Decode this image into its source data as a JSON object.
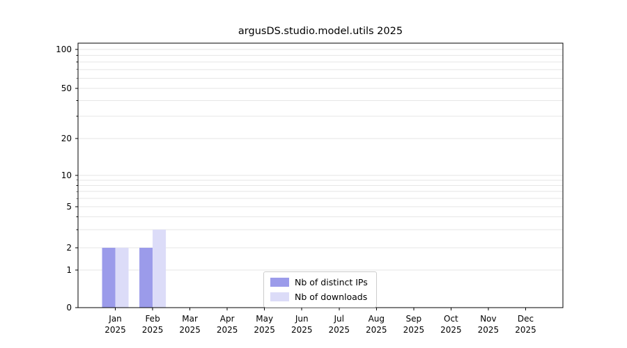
{
  "chart_data": {
    "type": "bar",
    "title": "argusDS.studio.model.utils 2025",
    "categories": [
      "Jan 2025",
      "Feb 2025",
      "Mar 2025",
      "Apr 2025",
      "May 2025",
      "Jun 2025",
      "Jul 2025",
      "Aug 2025",
      "Sep 2025",
      "Oct 2025",
      "Nov 2025",
      "Dec 2025"
    ],
    "series": [
      {
        "name": "Nb of distinct IPs",
        "color": "#9b9bea",
        "values": [
          2,
          2,
          0,
          0,
          0,
          0,
          0,
          0,
          0,
          0,
          0,
          0
        ]
      },
      {
        "name": "Nb of downloads",
        "color": "#dcdcf8",
        "values": [
          2,
          3,
          0,
          0,
          0,
          0,
          0,
          0,
          0,
          0,
          0,
          0
        ]
      }
    ],
    "xlabel": "",
    "ylabel": "",
    "yscale": "symlog",
    "yticks": [
      0,
      1,
      2,
      5,
      10,
      20,
      50,
      100
    ],
    "yticks_minor": [
      3,
      4,
      6,
      7,
      8,
      9,
      30,
      40,
      60,
      70,
      80,
      90
    ],
    "ylim": [
      0,
      110
    ],
    "grid": "horizontal",
    "legend_position": "lower-center-inside"
  },
  "colors": {
    "grid": "#e6e6e6",
    "axis": "#000000",
    "background": "#ffffff",
    "legend_border": "#cccccc",
    "text": "#000000"
  }
}
